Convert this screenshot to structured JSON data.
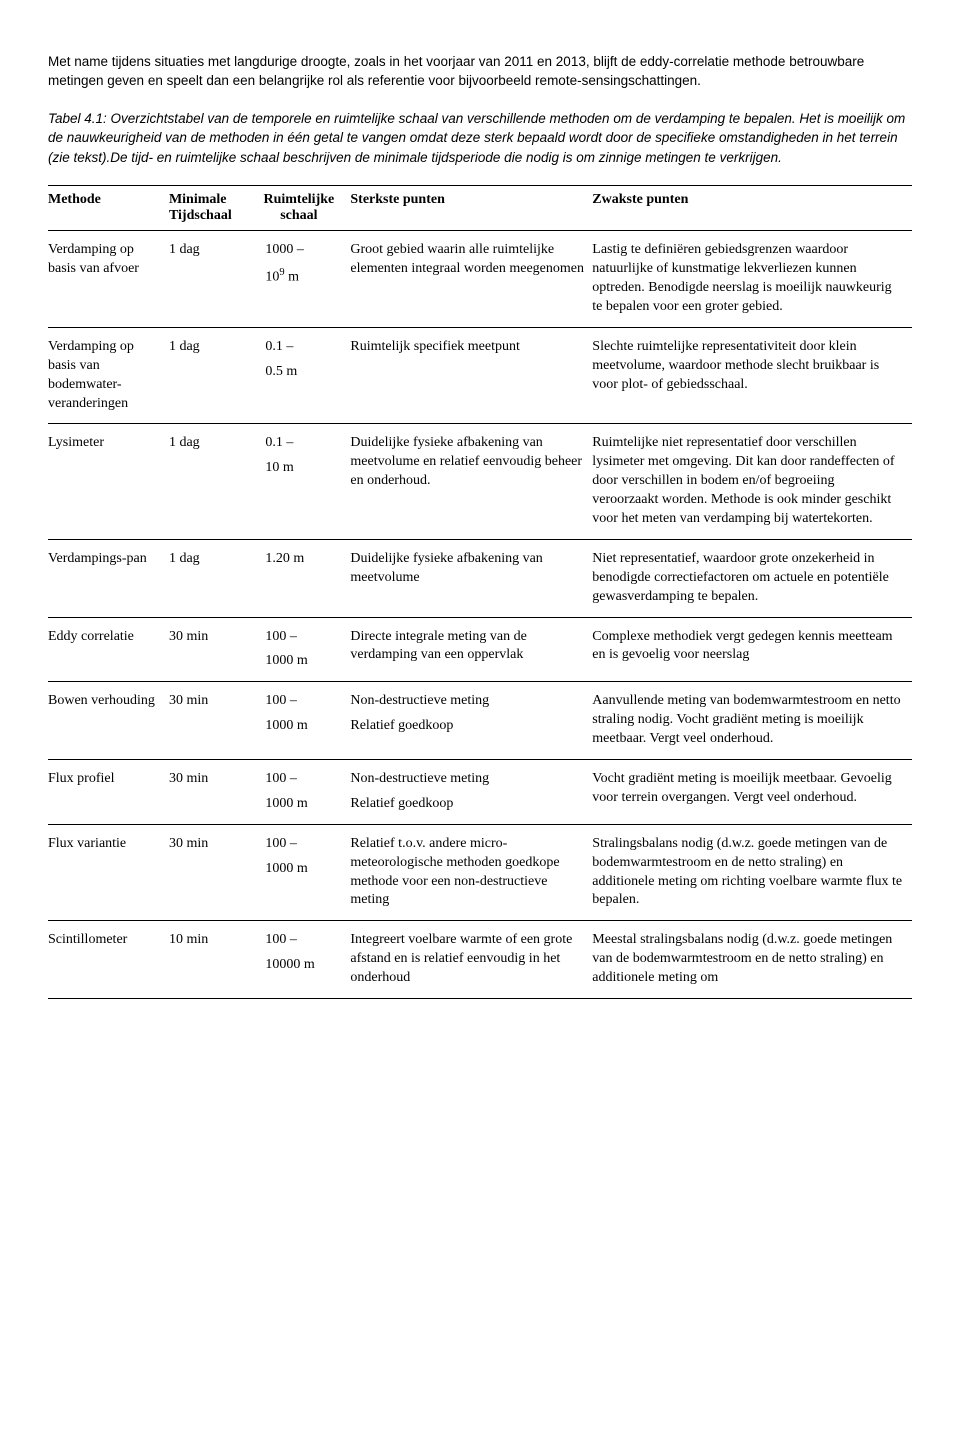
{
  "intro": "Met name tijdens situaties met langdurige droogte, zoals in het voorjaar van 2011 en 2013, blijft de eddy-correlatie methode betrouwbare metingen geven en speelt dan een belangrijke rol als referentie voor bijvoorbeeld remote-sensingschattingen.",
  "caption": "Tabel 4.1: Overzichtstabel van de temporele en ruimtelijke schaal van verschillende methoden om de verdamping te bepalen. Het is moeilijk om de nauwkeurigheid van de methoden in één getal te vangen omdat deze sterk bepaald wordt door de specifieke omstandigheden in het terrein (zie tekst).De tijd- en ruimtelijke schaal beschrijven de minimale tijdsperiode die nodig is om zinnige metingen te verkrijgen.",
  "table": {
    "columns": [
      {
        "line1": "Methode",
        "line2": ""
      },
      {
        "line1": "Minimale",
        "line2": "Tijdschaal"
      },
      {
        "line1": "Ruimtelijke",
        "line2": "schaal"
      },
      {
        "line1": "Sterkste punten",
        "line2": ""
      },
      {
        "line1": "Zwakste punten",
        "line2": ""
      }
    ],
    "rows": [
      {
        "method": "Verdamping op basis van afvoer",
        "time": "1 dag",
        "spatial_l1": "1000 –",
        "spatial_l2": "10⁹ m",
        "strong": "Groot gebied waarin alle ruimtelijke elementen integraal worden meegenomen",
        "weak": "Lastig te definiëren gebiedsgrenzen waardoor natuurlijke of kunstmatige lekverliezen kunnen optreden. Benodigde neerslag is moeilijk nauwkeurig te bepalen voor een groter gebied."
      },
      {
        "method": "Verdamping op basis van bodemwater-veranderingen",
        "time": "1 dag",
        "spatial_l1": "0.1 –",
        "spatial_l2": "0.5 m",
        "strong": "Ruimtelijk specifiek meetpunt",
        "weak": "Slechte ruimtelijke representativiteit door klein meetvolume, waardoor methode slecht bruikbaar is voor plot- of gebiedsschaal."
      },
      {
        "method": "Lysimeter",
        "time": "1 dag",
        "spatial_l1": "0.1 –",
        "spatial_l2": "10 m",
        "strong": "Duidelijke fysieke afbakening van meetvolume en relatief eenvoudig beheer en onderhoud.",
        "weak": "Ruimtelijke niet representatief door verschillen lysimeter met omgeving. Dit kan door randeffecten of door verschillen in bodem en/of begroeiing veroorzaakt worden. Methode is ook minder geschikt voor het meten van verdamping bij watertekorten."
      },
      {
        "method": "Verdampings-pan",
        "time": "1 dag",
        "spatial_l1": "1.20 m",
        "spatial_l2": "",
        "strong": "Duidelijke fysieke afbakening van meetvolume",
        "weak": "Niet representatief, waardoor grote onzekerheid in benodigde correctiefactoren om actuele en potentiële gewasverdamping te bepalen."
      },
      {
        "method": "Eddy correlatie",
        "time": "30 min",
        "spatial_l1": "100 –",
        "spatial_l2": "1000 m",
        "strong": "Directe integrale meting van de verdamping van een oppervlak",
        "weak": "Complexe methodiek vergt gedegen kennis meetteam en is gevoelig voor neerslag"
      },
      {
        "method": "Bowen verhouding",
        "time": "30 min",
        "spatial_l1": "100 –",
        "spatial_l2": "1000 m",
        "strong": "Non-destructieve meting\nRelatief goedkoop",
        "weak": "Aanvullende meting van bodemwarmtestroom en netto straling nodig. Vocht gradiënt meting is moeilijk meetbaar. Vergt veel onderhoud."
      },
      {
        "method": "Flux profiel",
        "time": "30 min",
        "spatial_l1": "100 –",
        "spatial_l2": "1000 m",
        "strong": "Non-destructieve meting\nRelatief goedkoop",
        "weak": "Vocht gradiënt meting is moeilijk meetbaar. Gevoelig voor terrein overgangen. Vergt veel onderhoud."
      },
      {
        "method": "Flux variantie",
        "time": "30 min",
        "spatial_l1": "100 –",
        "spatial_l2": "1000 m",
        "strong": "Relatief t.o.v. andere micro-meteorologische methoden goedkope methode voor een non-destructieve meting",
        "weak": "Stralingsbalans nodig (d.w.z. goede metingen van de bodemwarmtestroom en de netto straling) en additionele meting om richting voelbare warmte flux te bepalen."
      },
      {
        "method": "Scintillometer",
        "time": "10 min",
        "spatial_l1": "100  –",
        "spatial_l2": "10000 m",
        "strong": "Integreert voelbare warmte of een grote afstand en is relatief eenvoudig in het onderhoud",
        "weak": "Meestal stralingsbalans nodig (d.w.z. goede metingen van de bodemwarmtestroom en de netto straling) en additionele meting om"
      }
    ]
  }
}
